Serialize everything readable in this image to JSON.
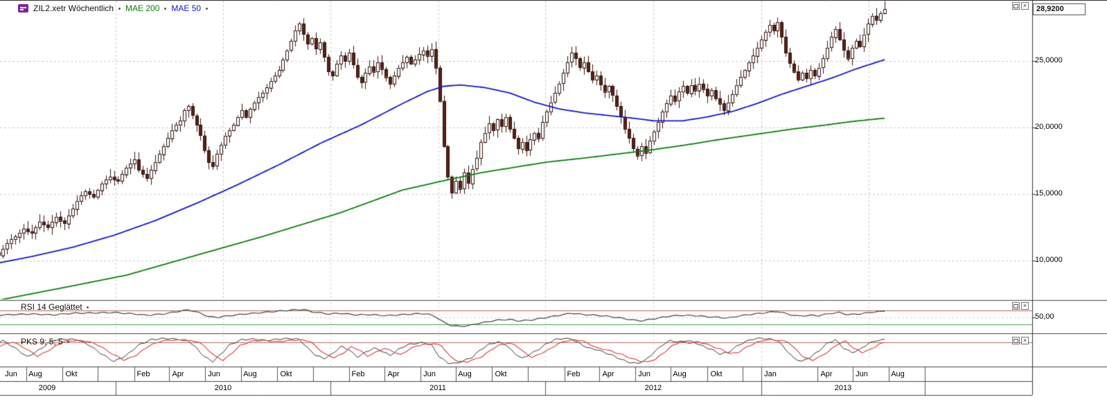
{
  "header": {
    "instrument_label": "ZIL2.xetr Wöchentlich",
    "ma200_label": "MAE 200",
    "ma50_label": "MAE 50"
  },
  "icons": {
    "close": "×"
  },
  "price_axis": {
    "current_price_label": "28,9200",
    "ticks": [
      {
        "value": 25,
        "label": "25,0000"
      },
      {
        "value": 20,
        "label": "20,0000"
      },
      {
        "value": 15,
        "label": "15,0000"
      },
      {
        "value": 10,
        "label": "10,0000"
      }
    ]
  },
  "rsi_panel": {
    "title": "RSI 14 Geglättet",
    "axis_label": "50,00"
  },
  "pks_panel": {
    "title": "PKS 9; 5; 5"
  },
  "x_axis": {
    "months": [
      {
        "label": "Jun",
        "week": 0
      },
      {
        "label": "Aug",
        "week": 8.7
      },
      {
        "label": "Okt",
        "week": 17.4
      },
      {
        "label": "Feb",
        "week": 35.0
      },
      {
        "label": "Apr",
        "week": 43.4
      },
      {
        "label": "Jun",
        "week": 52.1
      },
      {
        "label": "Aug",
        "week": 60.9
      },
      {
        "label": "Okt",
        "week": 69.6
      },
      {
        "label": "Feb",
        "week": 87.1
      },
      {
        "label": "Apr",
        "week": 95.6
      },
      {
        "label": "Jun",
        "week": 104.3
      },
      {
        "label": "Aug",
        "week": 113.0
      },
      {
        "label": "Okt",
        "week": 121.7
      },
      {
        "label": "Feb",
        "week": 139.3
      },
      {
        "label": "Apr",
        "week": 147.7
      },
      {
        "label": "Jun",
        "week": 156.4
      },
      {
        "label": "Aug",
        "week": 165.1
      },
      {
        "label": "Okt",
        "week": 173.9
      },
      {
        "label": "Jan",
        "week": 187.0
      },
      {
        "label": "Apr",
        "week": 200.6
      },
      {
        "label": "Jun",
        "week": 209.3
      },
      {
        "label": "Aug",
        "week": 218.0
      }
    ],
    "extra_month_ticks": [
      26.1,
      78.3,
      130.4,
      182.5,
      226.7
    ],
    "years": [
      {
        "label": "2009",
        "start_week": -3.0,
        "end_week": 30.4
      },
      {
        "label": "2010",
        "start_week": 30.4,
        "end_week": 82.6
      },
      {
        "label": "2011",
        "start_week": 82.6,
        "end_week": 134.7
      },
      {
        "label": "2012",
        "start_week": 134.7,
        "end_week": 187.0
      },
      {
        "label": "2013",
        "start_week": 187.0,
        "end_week": 226.7
      }
    ],
    "half_year_grid_weeks": [
      30.4,
      56.5,
      82.6,
      108.7,
      134.7,
      160.8,
      187.0,
      213.1
    ]
  },
  "colors": {
    "candle_up_fill": "#fdfdfd",
    "candle_down_fill": "#5a2017",
    "candle_stroke": "#2f120c",
    "ma50": "#1414d2",
    "ma200": "#0a7d0a",
    "grid": "#c8c8c8",
    "rsi_line": "#404040",
    "rsi_upper_line": "#b4645a",
    "rsi_lower_line": "#4a9a4a",
    "pks_main": "#303030",
    "pks_signal": "#d84848",
    "pks_upper_line": "#b4645a",
    "separator": "#444444",
    "axis_line": "#333333"
  },
  "chart_data": {
    "type": "candlestick",
    "instrument": "ZIL2.xetr",
    "timeframe": "Wöchentlich",
    "x_unit": "week",
    "start_label": "Jun 2009",
    "end_label": "Aug 2013",
    "last_price": 28.92,
    "visible_price_range": [
      7.0,
      29.7
    ],
    "price_gridlines": [
      25,
      20,
      15,
      10
    ],
    "weekly_closes": [
      10.9,
      10.6,
      10.4,
      10.9,
      11.3,
      11.6,
      11.8,
      12.1,
      12.4,
      12.2,
      12.1,
      12.5,
      12.9,
      12.7,
      12.5,
      12.9,
      13.3,
      13.0,
      12.8,
      13.4,
      13.9,
      14.5,
      14.9,
      15.2,
      15.0,
      14.8,
      15.3,
      15.8,
      16.1,
      16.3,
      16.1,
      16.0,
      16.5,
      17.0,
      17.3,
      17.6,
      16.8,
      16.5,
      16.2,
      16.8,
      17.4,
      18.0,
      18.6,
      19.2,
      19.8,
      20.2,
      20.5,
      21.3,
      21.6,
      20.9,
      20.2,
      19.4,
      18.3,
      17.4,
      17.1,
      18.0,
      18.7,
      19.4,
      19.8,
      20.2,
      20.8,
      21.3,
      20.8,
      21.4,
      21.9,
      22.3,
      22.6,
      23.0,
      23.5,
      23.9,
      24.3,
      25.1,
      25.8,
      26.5,
      27.3,
      27.8,
      27.0,
      26.3,
      26.7,
      25.9,
      26.4,
      25.3,
      24.2,
      23.9,
      24.8,
      25.4,
      25.0,
      25.6,
      24.7,
      23.8,
      23.4,
      24.1,
      24.6,
      24.2,
      24.9,
      24.4,
      23.8,
      23.3,
      23.9,
      24.5,
      24.9,
      25.3,
      24.8,
      25.1,
      25.5,
      25.8,
      25.4,
      25.9,
      24.5,
      22.0,
      18.6,
      16.3,
      15.1,
      16.0,
      15.4,
      16.6,
      15.8,
      16.9,
      17.7,
      18.9,
      19.6,
      20.3,
      19.8,
      20.6,
      20.1,
      20.8,
      19.9,
      19.2,
      18.4,
      18.9,
      18.3,
      19.1,
      19.6,
      19.2,
      20.4,
      21.2,
      21.9,
      22.6,
      23.3,
      24.1,
      24.9,
      25.6,
      25.2,
      24.5,
      24.9,
      24.2,
      23.6,
      23.9,
      23.2,
      22.7,
      23.1,
      22.4,
      21.6,
      20.8,
      19.9,
      19.2,
      18.4,
      17.9,
      18.6,
      18.1,
      19.0,
      19.7,
      20.4,
      21.2,
      21.8,
      22.4,
      22.0,
      22.7,
      23.1,
      22.6,
      23.2,
      22.8,
      23.3,
      22.9,
      22.4,
      22.8,
      22.2,
      21.8,
      21.3,
      21.9,
      22.5,
      23.2,
      23.8,
      24.3,
      24.9,
      25.4,
      26.0,
      26.6,
      27.2,
      27.7,
      27.3,
      27.9,
      26.8,
      25.6,
      24.8,
      24.2,
      23.6,
      24.1,
      23.7,
      24.3,
      23.9,
      24.5,
      25.2,
      26.0,
      26.8,
      27.4,
      26.6,
      25.8,
      25.2,
      26.0,
      26.5,
      26.1,
      27.0,
      27.8,
      28.4,
      28.1,
      28.6,
      28.9
    ],
    "ma50": [
      [
        0,
        9.7
      ],
      [
        10,
        10.3
      ],
      [
        20,
        11.0
      ],
      [
        30,
        11.9
      ],
      [
        40,
        13.0
      ],
      [
        50,
        14.3
      ],
      [
        60,
        15.7
      ],
      [
        70,
        17.2
      ],
      [
        80,
        18.8
      ],
      [
        90,
        20.2
      ],
      [
        100,
        21.8
      ],
      [
        106,
        22.7
      ],
      [
        110,
        23.1
      ],
      [
        114,
        23.2
      ],
      [
        120,
        23.0
      ],
      [
        126,
        22.6
      ],
      [
        132,
        21.9
      ],
      [
        138,
        21.4
      ],
      [
        144,
        21.1
      ],
      [
        150,
        20.9
      ],
      [
        156,
        20.7
      ],
      [
        161,
        20.5
      ],
      [
        168,
        20.5
      ],
      [
        174,
        20.8
      ],
      [
        180,
        21.2
      ],
      [
        186,
        21.8
      ],
      [
        192,
        22.5
      ],
      [
        198,
        23.1
      ],
      [
        204,
        23.7
      ],
      [
        210,
        24.4
      ],
      [
        217,
        25.1
      ]
    ],
    "ma200": [
      [
        0,
        6.9
      ],
      [
        20,
        8.1
      ],
      [
        33,
        8.9
      ],
      [
        50,
        10.4
      ],
      [
        66,
        11.8
      ],
      [
        85,
        13.6
      ],
      [
        100,
        15.3
      ],
      [
        110,
        16.0
      ],
      [
        119,
        16.6
      ],
      [
        127,
        17.0
      ],
      [
        135,
        17.4
      ],
      [
        144,
        17.7
      ],
      [
        152,
        18.0
      ],
      [
        160,
        18.3
      ],
      [
        169,
        18.7
      ],
      [
        177,
        19.1
      ],
      [
        186,
        19.5
      ],
      [
        195,
        19.9
      ],
      [
        203,
        20.2
      ],
      [
        209,
        20.45
      ],
      [
        217,
        20.7
      ]
    ],
    "rsi": [
      [
        0,
        55
      ],
      [
        5,
        58
      ],
      [
        10,
        60
      ],
      [
        15,
        57
      ],
      [
        20,
        62
      ],
      [
        25,
        63
      ],
      [
        30,
        64
      ],
      [
        35,
        60
      ],
      [
        38,
        56
      ],
      [
        42,
        60
      ],
      [
        46,
        68
      ],
      [
        48,
        72
      ],
      [
        51,
        62
      ],
      [
        53,
        52
      ],
      [
        55,
        50
      ],
      [
        58,
        55
      ],
      [
        62,
        60
      ],
      [
        66,
        64
      ],
      [
        70,
        68
      ],
      [
        74,
        72
      ],
      [
        76,
        73
      ],
      [
        78,
        66
      ],
      [
        82,
        60
      ],
      [
        85,
        62
      ],
      [
        89,
        57
      ],
      [
        92,
        58
      ],
      [
        96,
        55
      ],
      [
        100,
        58
      ],
      [
        104,
        61
      ],
      [
        106,
        60
      ],
      [
        108,
        52
      ],
      [
        110,
        36
      ],
      [
        112,
        26
      ],
      [
        114,
        24
      ],
      [
        116,
        26
      ],
      [
        118,
        32
      ],
      [
        120,
        36
      ],
      [
        123,
        42
      ],
      [
        126,
        44
      ],
      [
        128,
        40
      ],
      [
        131,
        42
      ],
      [
        134,
        48
      ],
      [
        137,
        54
      ],
      [
        139,
        58
      ],
      [
        141,
        62
      ],
      [
        144,
        58
      ],
      [
        147,
        56
      ],
      [
        150,
        53
      ],
      [
        153,
        48
      ],
      [
        156,
        42
      ],
      [
        158,
        40
      ],
      [
        160,
        44
      ],
      [
        163,
        50
      ],
      [
        165,
        54
      ],
      [
        168,
        56
      ],
      [
        171,
        55
      ],
      [
        174,
        52
      ],
      [
        177,
        50
      ],
      [
        179,
        48
      ],
      [
        181,
        53
      ],
      [
        184,
        58
      ],
      [
        187,
        62
      ],
      [
        189,
        65
      ],
      [
        191,
        67
      ],
      [
        194,
        58
      ],
      [
        196,
        54
      ],
      [
        199,
        56
      ],
      [
        201,
        55
      ],
      [
        204,
        62
      ],
      [
        206,
        64
      ],
      [
        208,
        58
      ],
      [
        211,
        60
      ],
      [
        214,
        65
      ],
      [
        217,
        68
      ]
    ],
    "rsi_levels": {
      "upper": 70,
      "mid": 50,
      "lower": 30
    },
    "pks": [
      [
        0,
        70
      ],
      [
        3,
        85
      ],
      [
        6,
        60
      ],
      [
        9,
        30
      ],
      [
        12,
        55
      ],
      [
        15,
        85
      ],
      [
        18,
        90
      ],
      [
        21,
        88
      ],
      [
        24,
        70
      ],
      [
        27,
        40
      ],
      [
        30,
        15
      ],
      [
        33,
        35
      ],
      [
        36,
        70
      ],
      [
        39,
        88
      ],
      [
        42,
        92
      ],
      [
        45,
        90
      ],
      [
        48,
        85
      ],
      [
        50,
        60
      ],
      [
        52,
        30
      ],
      [
        54,
        15
      ],
      [
        56,
        40
      ],
      [
        58,
        70
      ],
      [
        61,
        88
      ],
      [
        64,
        90
      ],
      [
        67,
        85
      ],
      [
        70,
        90
      ],
      [
        73,
        92
      ],
      [
        75,
        88
      ],
      [
        77,
        60
      ],
      [
        79,
        35
      ],
      [
        81,
        25
      ],
      [
        83,
        40
      ],
      [
        85,
        65
      ],
      [
        87,
        55
      ],
      [
        89,
        30
      ],
      [
        91,
        45
      ],
      [
        93,
        60
      ],
      [
        95,
        50
      ],
      [
        97,
        35
      ],
      [
        99,
        55
      ],
      [
        101,
        70
      ],
      [
        103,
        75
      ],
      [
        105,
        78
      ],
      [
        107,
        70
      ],
      [
        109,
        30
      ],
      [
        111,
        10
      ],
      [
        113,
        8
      ],
      [
        115,
        18
      ],
      [
        117,
        30
      ],
      [
        119,
        55
      ],
      [
        121,
        72
      ],
      [
        123,
        80
      ],
      [
        125,
        72
      ],
      [
        127,
        45
      ],
      [
        129,
        25
      ],
      [
        131,
        40
      ],
      [
        133,
        55
      ],
      [
        135,
        75
      ],
      [
        137,
        88
      ],
      [
        139,
        92
      ],
      [
        141,
        90
      ],
      [
        143,
        75
      ],
      [
        145,
        60
      ],
      [
        147,
        55
      ],
      [
        149,
        45
      ],
      [
        151,
        35
      ],
      [
        153,
        22
      ],
      [
        155,
        12
      ],
      [
        157,
        8
      ],
      [
        159,
        20
      ],
      [
        161,
        45
      ],
      [
        163,
        70
      ],
      [
        165,
        85
      ],
      [
        167,
        80
      ],
      [
        169,
        85
      ],
      [
        171,
        78
      ],
      [
        173,
        65
      ],
      [
        175,
        55
      ],
      [
        177,
        40
      ],
      [
        179,
        45
      ],
      [
        181,
        65
      ],
      [
        183,
        80
      ],
      [
        185,
        90
      ],
      [
        187,
        93
      ],
      [
        189,
        90
      ],
      [
        191,
        85
      ],
      [
        193,
        55
      ],
      [
        195,
        25
      ],
      [
        197,
        15
      ],
      [
        199,
        30
      ],
      [
        201,
        50
      ],
      [
        203,
        75
      ],
      [
        205,
        88
      ],
      [
        207,
        60
      ],
      [
        209,
        45
      ],
      [
        211,
        55
      ],
      [
        213,
        75
      ],
      [
        215,
        85
      ],
      [
        217,
        88
      ]
    ],
    "pks_levels": {
      "upper": 80
    }
  }
}
